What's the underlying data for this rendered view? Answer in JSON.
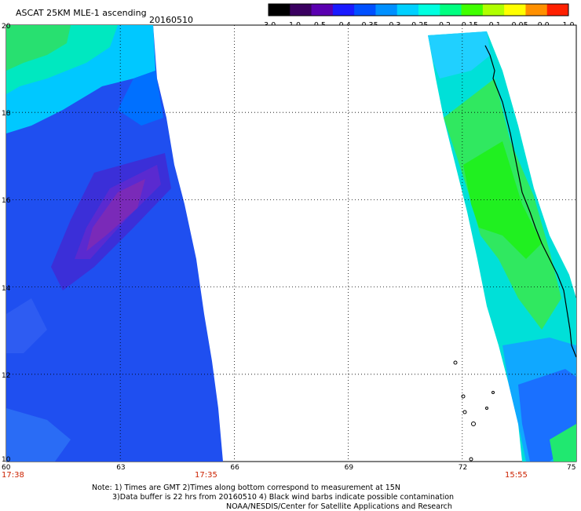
{
  "header": {
    "title": "ASCAT 25KM MLE-1 ascending",
    "date": "20160510"
  },
  "colorbar": {
    "labels": [
      "-3.0",
      "-1.0",
      "-0.5",
      "-0.4",
      "-0.35",
      "-0.3",
      "-0.25",
      "-0.2",
      "-0.15",
      "-0.1",
      "-0.05",
      "0.0",
      "1.0"
    ],
    "colors": [
      "#000000",
      "#3a0060",
      "#5a00b0",
      "#1a1aff",
      "#0050ff",
      "#0090ff",
      "#00d0ff",
      "#00ffe0",
      "#00ff80",
      "#40ff00",
      "#b0ff00",
      "#ffff00",
      "#ff9000",
      "#ff2000"
    ]
  },
  "axes": {
    "lat_labels": [
      "20",
      "18",
      "16",
      "14",
      "12",
      "10"
    ],
    "lon_labels": [
      "60",
      "63",
      "66",
      "69",
      "72",
      "75"
    ],
    "time_labels": [
      "17:38",
      "17:35",
      "15:55"
    ]
  },
  "notes": {
    "line1": "Note: 1) Times are GMT 2)Times along bottom correspond to measurement at 15N",
    "line2": "3)Data buffer is 22 hrs from 20160510 4) Black wind barbs indicate possible contamination",
    "line3": "NOAA/NESDIS/Center for Satellite Applications and Research"
  }
}
